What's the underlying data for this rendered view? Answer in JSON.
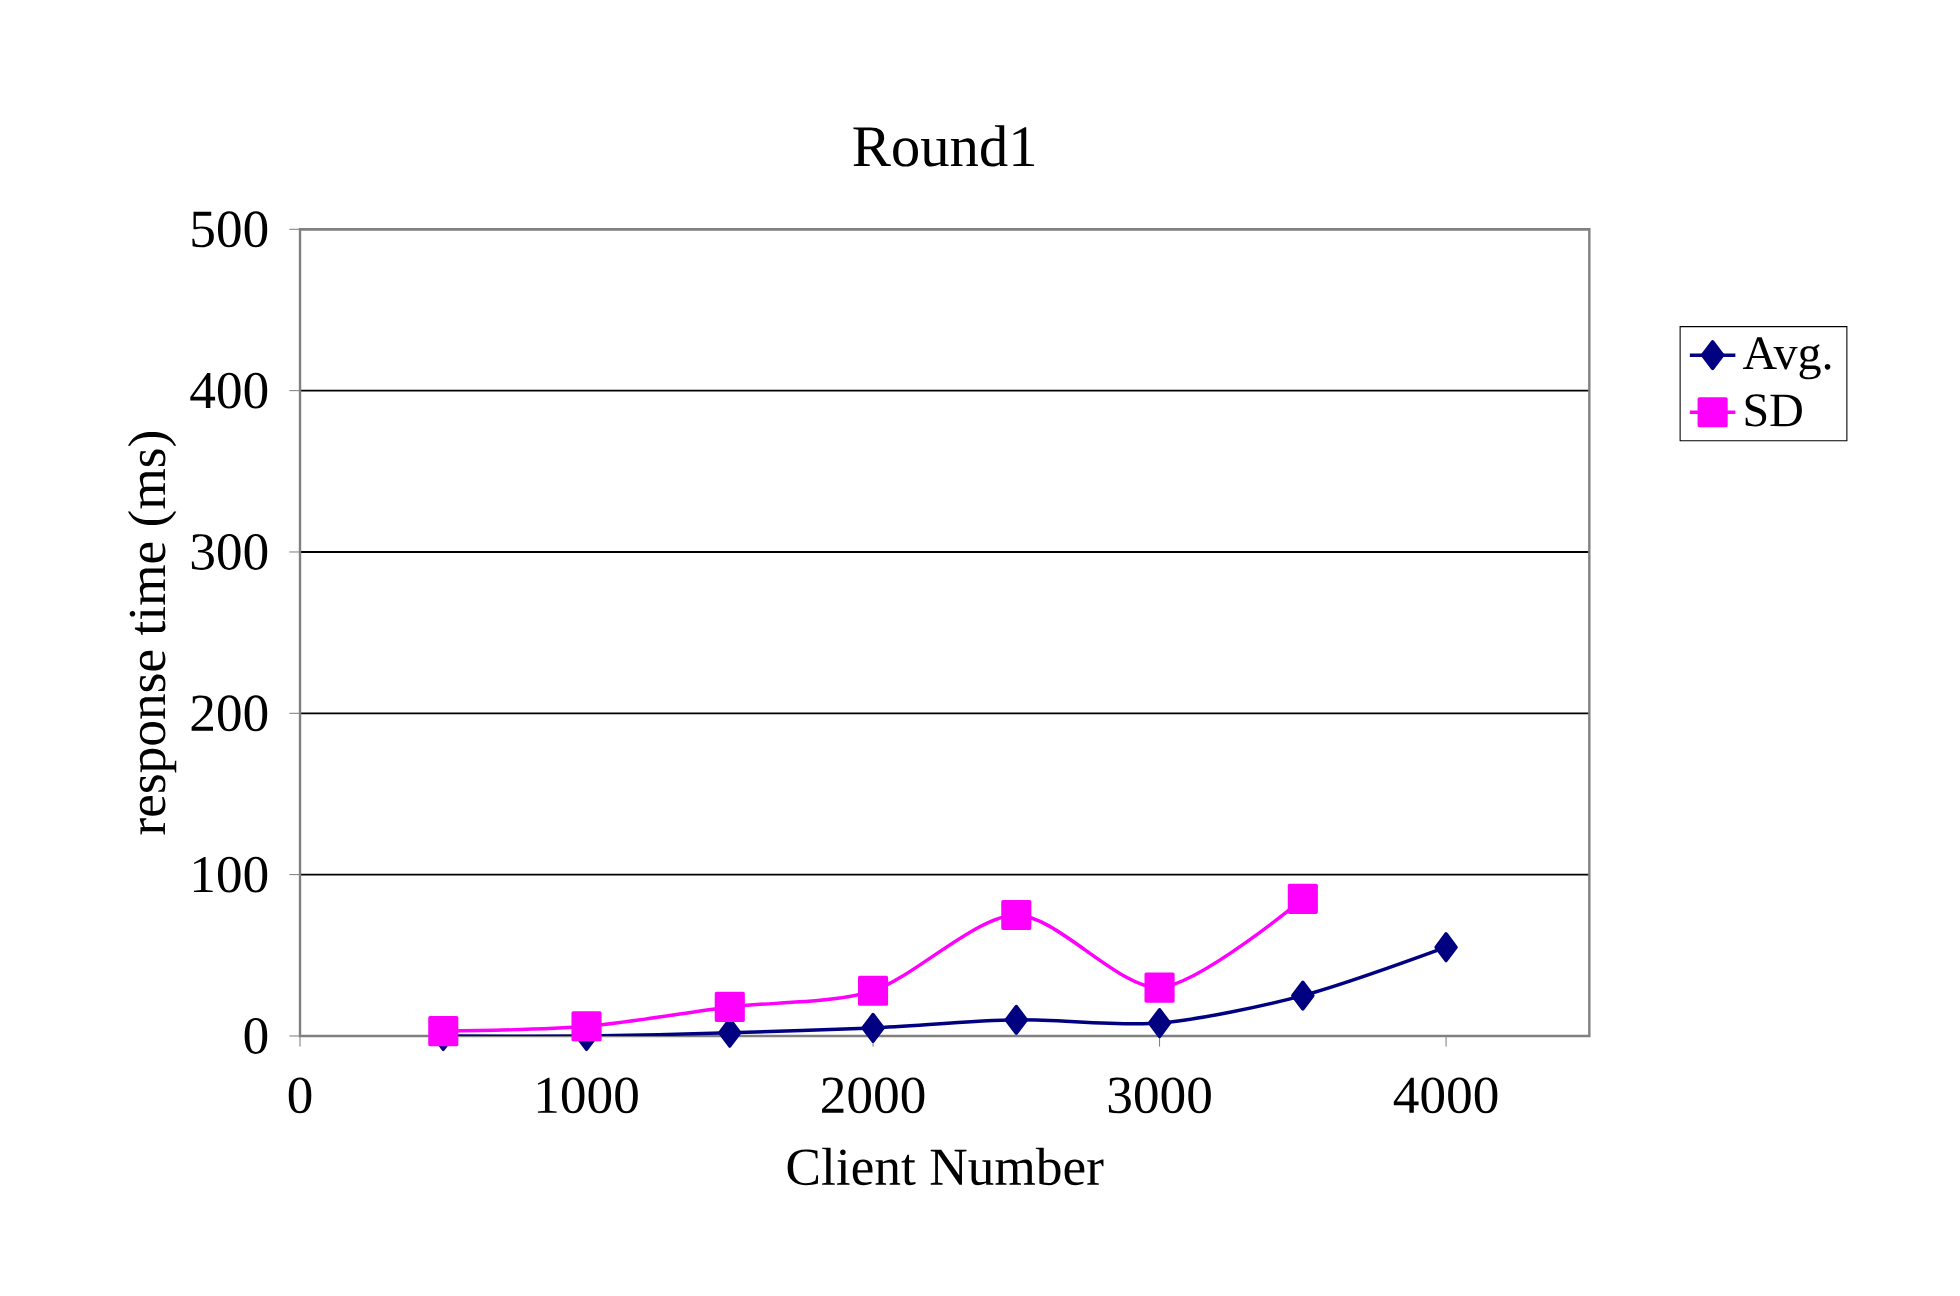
{
  "chart_data": {
    "type": "line",
    "title": "Round1",
    "xlabel": "Client Number",
    "ylabel": "response time (ms)",
    "x": [
      500,
      1000,
      1500,
      2000,
      2500,
      3000,
      3500,
      4000
    ],
    "series": [
      {
        "name": "Avg.",
        "color": "#000080",
        "marker": "diamond",
        "values": [
          0,
          0,
          2,
          5,
          10,
          8,
          25,
          55
        ]
      },
      {
        "name": "SD",
        "color": "#ff00ff",
        "marker": "square",
        "values": [
          3,
          6,
          18,
          28,
          75,
          30,
          85,
          null
        ]
      }
    ],
    "xlim": [
      0,
      4500
    ],
    "xticks": [
      0,
      1000,
      2000,
      3000,
      4000
    ],
    "ylim": [
      0,
      500
    ],
    "yticks": [
      0,
      100,
      200,
      300,
      400,
      500
    ],
    "grid": "y",
    "legend": "right",
    "line_style": "solid"
  }
}
